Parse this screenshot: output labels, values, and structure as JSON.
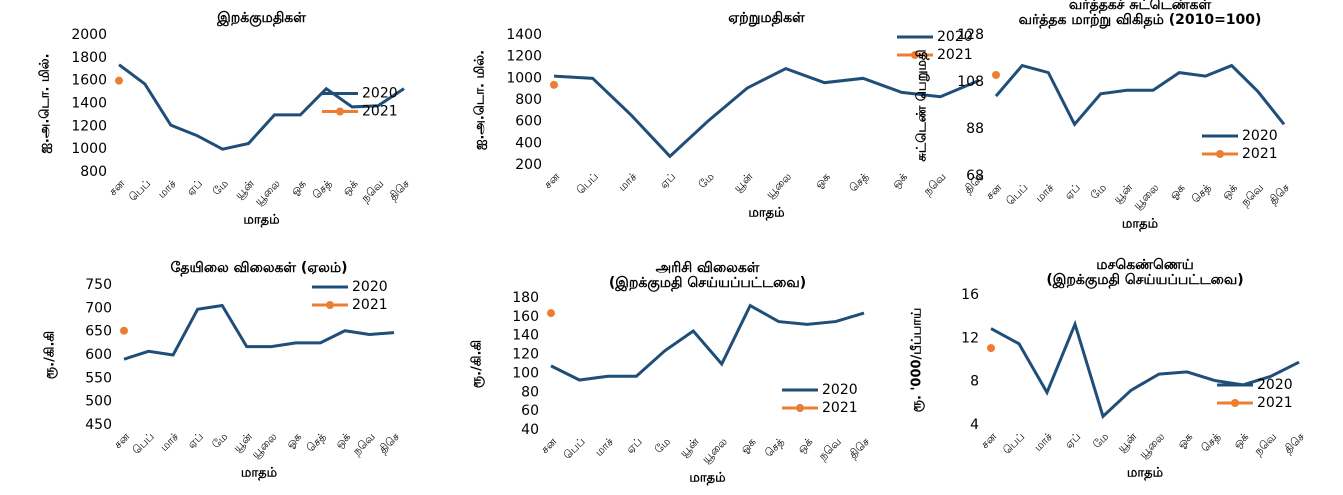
{
  "chart_data": [
    {
      "type": "line",
      "title": "இறக்குமதிகள்",
      "ylabel": "ஐ.அ.டொ. மில்.",
      "xlabel": "மாதம்",
      "categories": [
        "சன",
        "பெப்",
        "மாச்",
        "ஏப்",
        "மே",
        "யூன்",
        "யூலை",
        "ஓக",
        "செத்",
        "ஒக்",
        "நவெ",
        "திசெ"
      ],
      "series": [
        {
          "name": "2020",
          "color": "#1f4e79",
          "values": [
            1740,
            1570,
            1210,
            1120,
            1000,
            1050,
            1300,
            1300,
            1530,
            1370,
            1380,
            1530
          ]
        },
        {
          "name": "2021",
          "color": "#ed7d31",
          "marker": "o",
          "values": [
            1600,
            null,
            null,
            null,
            null,
            null,
            null,
            null,
            null,
            null,
            null,
            null
          ]
        }
      ],
      "ylim": [
        800,
        2000
      ],
      "yticks": [
        800,
        1000,
        1200,
        1400,
        1600,
        1800,
        2000
      ],
      "legend": "center right"
    },
    {
      "type": "line",
      "title": "ஏற்றுமதிகள்",
      "ylabel": "ஐ.அ.டொ. மில்.",
      "xlabel": "மாதம்",
      "categories": [
        "சன",
        "பெப்",
        "மாச்",
        "ஏப்",
        "மே",
        "யூன்",
        "யூலை",
        "ஓக",
        "செத்",
        "ஒக்",
        "நவெ",
        "திசெ"
      ],
      "series": [
        {
          "name": "2020",
          "color": "#1f4e79",
          "values": [
            1020,
            1000,
            660,
            280,
            610,
            910,
            1090,
            960,
            1000,
            870,
            830,
            980
          ]
        },
        {
          "name": "2021",
          "color": "#ed7d31",
          "marker": "o",
          "values": [
            940,
            null,
            null,
            null,
            null,
            null,
            null,
            null,
            null,
            null,
            null,
            null
          ]
        }
      ],
      "ylim": [
        200,
        1400
      ],
      "yticks": [
        200,
        400,
        600,
        800,
        1000,
        1200,
        1400
      ],
      "legend": "upper right"
    },
    {
      "type": "line",
      "title": "வர்த்தகச் சுட்டெண்கள்",
      "subtitle": "வர்த்தக மாற்று விகிதம் (2010=100)",
      "ylabel": "சுட்டெண் பெறுமதி",
      "xlabel": "மாதம்",
      "categories": [
        "சன",
        "பெப்",
        "மாச்",
        "ஏப்",
        "மே",
        "யூன்",
        "யூலை",
        "ஓக",
        "செத்",
        "ஒக்",
        "நவெ",
        "திசெ"
      ],
      "series": [
        {
          "name": "2020",
          "color": "#1f4e79",
          "values": [
            102,
            115,
            112,
            90,
            103,
            104.5,
            104.5,
            112,
            110.5,
            115,
            104,
            90
          ]
        },
        {
          "name": "2021",
          "color": "#ed7d31",
          "marker": "o",
          "values": [
            111,
            null,
            null,
            null,
            null,
            null,
            null,
            null,
            null,
            null,
            null,
            null
          ]
        }
      ],
      "ylim": [
        68,
        128
      ],
      "yticks": [
        68,
        88,
        108,
        128
      ],
      "legend": "lower right"
    },
    {
      "type": "line",
      "title": "தேயிலை விலைகள் (ஏலம்)",
      "ylabel": "ரூ./கி.கி",
      "xlabel": "மாதம்",
      "categories": [
        "சன",
        "பெப்",
        "மாச்",
        "ஏப்",
        "மே",
        "யூன்",
        "யூலை",
        "ஓக",
        "செத்",
        "ஒக்",
        "நவெ",
        "திசெ"
      ],
      "series": [
        {
          "name": "2020",
          "color": "#1f4e79",
          "values": [
            591,
            608,
            600,
            698,
            706,
            618,
            618,
            626,
            626,
            652,
            644,
            648
          ]
        },
        {
          "name": "2021",
          "color": "#ed7d31",
          "marker": "o",
          "values": [
            652,
            null,
            null,
            null,
            null,
            null,
            null,
            null,
            null,
            null,
            null,
            null
          ]
        }
      ],
      "ylim": [
        450,
        750
      ],
      "yticks": [
        450,
        500,
        550,
        600,
        650,
        700,
        750
      ],
      "legend": "upper right"
    },
    {
      "type": "line",
      "title": "அரிசி விலைகள்",
      "subtitle": "(இறக்குமதி செய்யப்பட்டவை)",
      "ylabel": "ரூ./கி.கி",
      "xlabel": "மாதம்",
      "categories": [
        "சன",
        "பெப்",
        "மாச்",
        "ஏப்",
        "மே",
        "யூன்",
        "யூலை",
        "ஓக",
        "செத்",
        "ஒக்",
        "நவெ",
        "திசெ"
      ],
      "series": [
        {
          "name": "2020",
          "color": "#1f4e79",
          "values": [
            108,
            93,
            97,
            97,
            124,
            145,
            110,
            172,
            155,
            152,
            155,
            164
          ]
        },
        {
          "name": "2021",
          "color": "#ed7d31",
          "marker": "o",
          "values": [
            164,
            null,
            null,
            null,
            null,
            null,
            null,
            null,
            null,
            null,
            null,
            null
          ]
        }
      ],
      "ylim": [
        40,
        180
      ],
      "yticks": [
        40,
        60,
        80,
        100,
        120,
        140,
        160,
        180
      ],
      "legend": "lower right"
    },
    {
      "type": "line",
      "title": "மசகெண்ணெய்",
      "subtitle": "(இறக்குமதி செய்யப்பட்டவை)",
      "ylabel": "ரூ. '000/பீப்பாய்",
      "xlabel": "மாதம்",
      "categories": [
        "சன",
        "பெப்",
        "மாச்",
        "ஏப்",
        "மே",
        "யூன்",
        "யூலை",
        "ஓக",
        "செத்",
        "ஒக்",
        "நவெ",
        "திசெ"
      ],
      "series": [
        {
          "name": "2020",
          "color": "#1f4e79",
          "values": [
            12.9,
            11.5,
            7,
            13.3,
            4.8,
            7.2,
            8.7,
            8.9,
            8.1,
            7.7,
            8.5,
            9.8
          ]
        },
        {
          "name": "2021",
          "color": "#ed7d31",
          "marker": "o",
          "values": [
            11.1,
            null,
            null,
            null,
            null,
            null,
            null,
            null,
            null,
            null,
            null,
            null
          ]
        }
      ],
      "ylim": [
        4,
        16
      ],
      "yticks": [
        4,
        8,
        12,
        16
      ],
      "legend": "lower right"
    }
  ]
}
